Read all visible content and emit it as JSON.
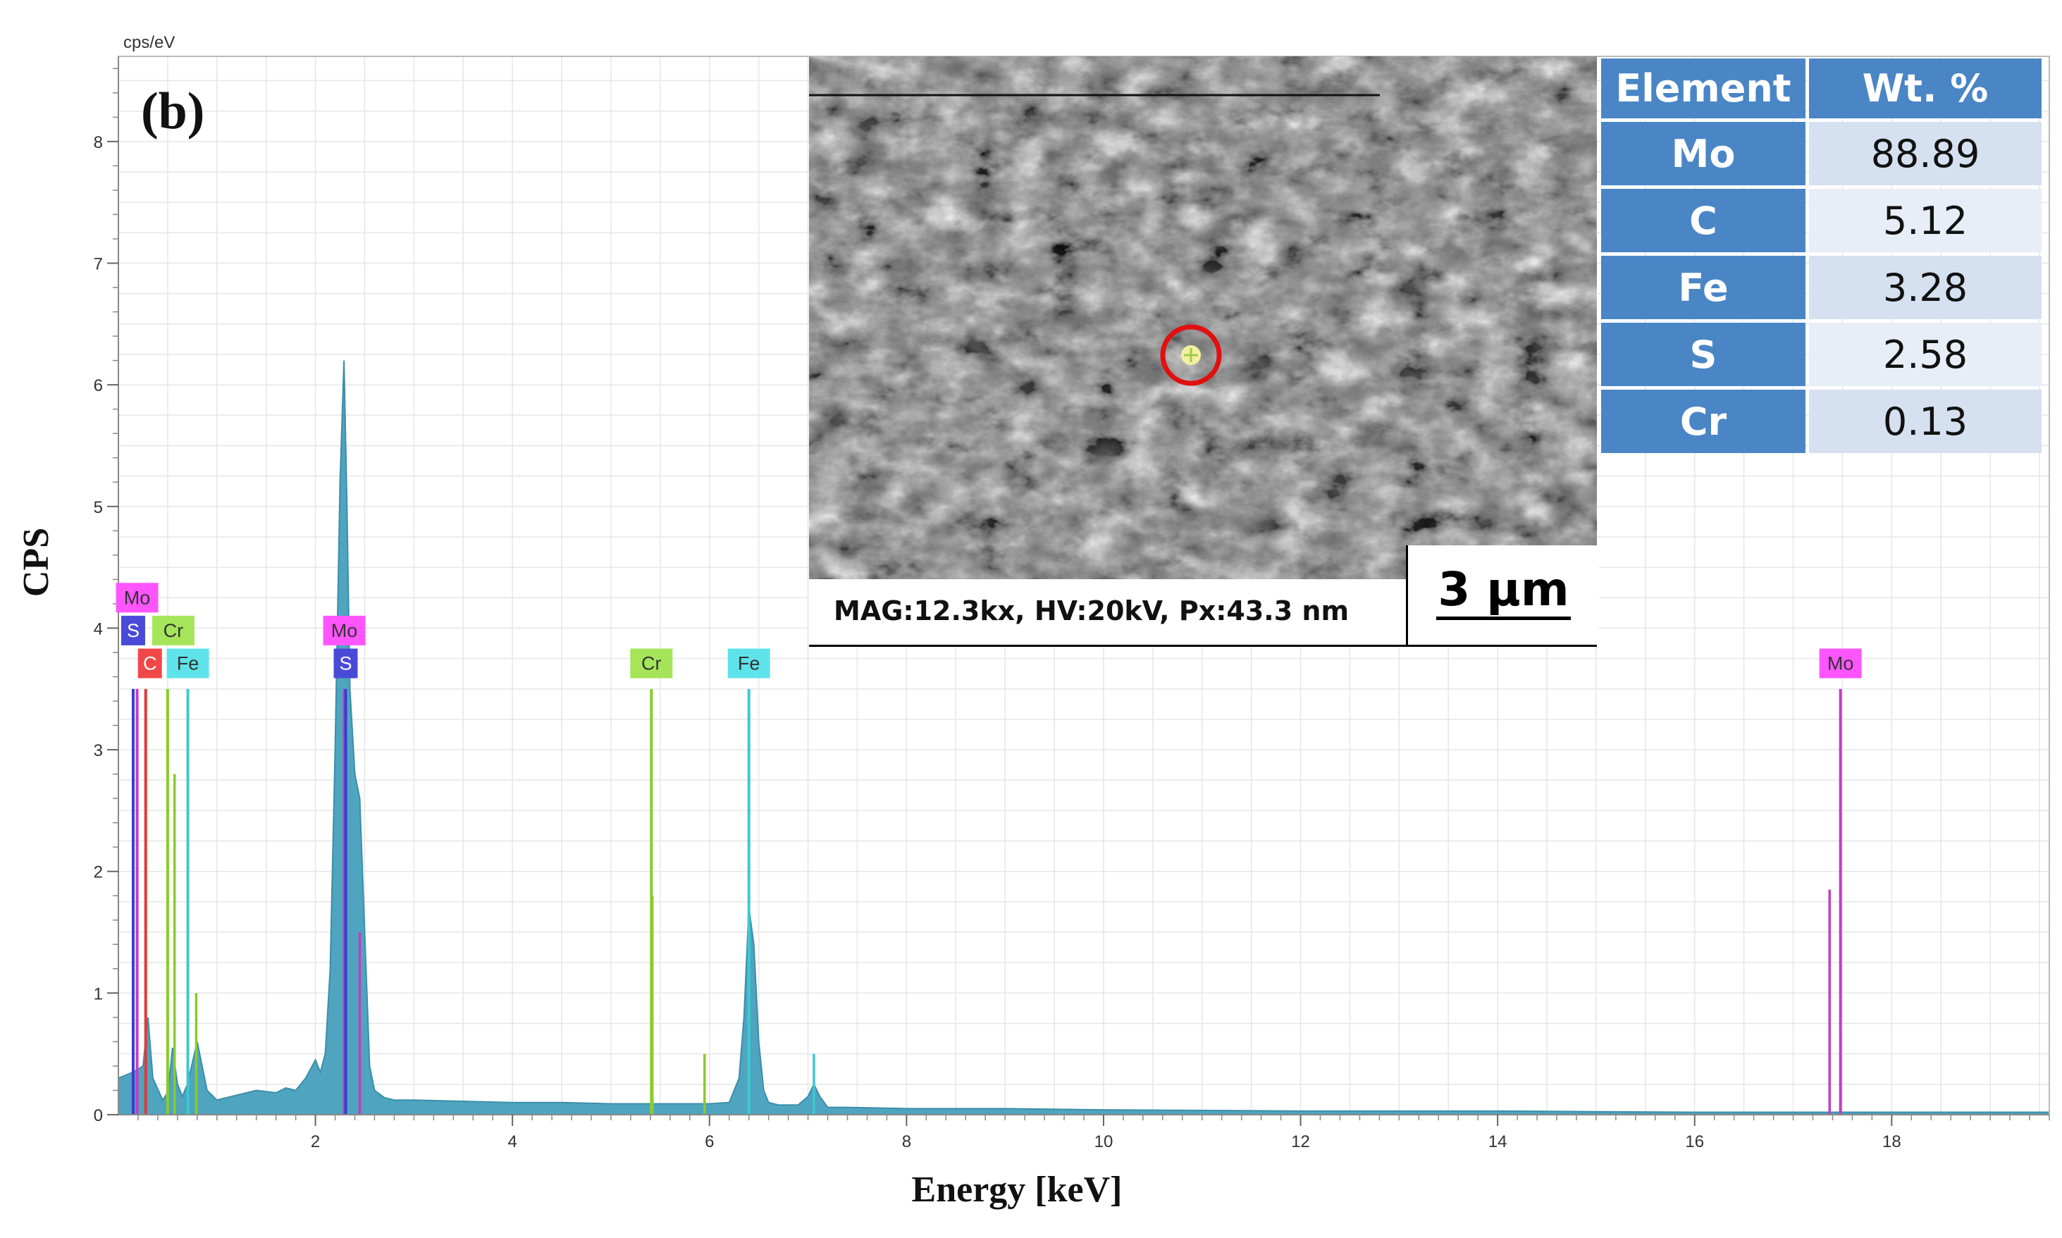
{
  "panel_label": "(b)",
  "chart_data": {
    "type": "line",
    "title": "",
    "xlabel": "Energy [keV]",
    "ylabel": "CPS",
    "y_unit_label": "cps/eV",
    "xlim": [
      0,
      19.6
    ],
    "ylim": [
      0,
      8.7
    ],
    "x_ticks": [
      2,
      4,
      6,
      8,
      10,
      12,
      14,
      16,
      18
    ],
    "y_ticks": [
      0,
      1,
      2,
      3,
      4,
      5,
      6,
      7,
      8
    ],
    "grid": true,
    "spectrum": {
      "x": [
        0.0,
        0.15,
        0.25,
        0.3,
        0.35,
        0.45,
        0.5,
        0.55,
        0.6,
        0.65,
        0.7,
        0.8,
        0.9,
        1.0,
        1.2,
        1.4,
        1.6,
        1.7,
        1.8,
        1.9,
        2.0,
        2.05,
        2.1,
        2.15,
        2.2,
        2.25,
        2.29,
        2.32,
        2.35,
        2.4,
        2.45,
        2.5,
        2.55,
        2.6,
        2.7,
        2.8,
        3.0,
        3.5,
        4.0,
        4.5,
        5.0,
        5.5,
        6.0,
        6.2,
        6.3,
        6.35,
        6.4,
        6.45,
        6.5,
        6.55,
        6.6,
        6.7,
        6.9,
        7.0,
        7.06,
        7.12,
        7.2,
        7.4,
        8.0,
        9.0,
        10.0,
        12.0,
        14.0,
        16.0,
        17.0,
        18.0,
        19.0,
        19.6
      ],
      "y": [
        0.3,
        0.35,
        0.4,
        0.8,
        0.3,
        0.12,
        0.18,
        0.55,
        0.25,
        0.15,
        0.25,
        0.6,
        0.2,
        0.12,
        0.16,
        0.2,
        0.18,
        0.22,
        0.2,
        0.3,
        0.45,
        0.35,
        0.5,
        1.2,
        3.0,
        5.2,
        6.2,
        5.0,
        3.5,
        2.8,
        2.6,
        1.5,
        0.4,
        0.2,
        0.14,
        0.12,
        0.12,
        0.11,
        0.1,
        0.1,
        0.09,
        0.09,
        0.09,
        0.1,
        0.3,
        0.8,
        1.7,
        1.4,
        0.6,
        0.2,
        0.1,
        0.08,
        0.08,
        0.15,
        0.25,
        0.15,
        0.06,
        0.06,
        0.05,
        0.05,
        0.04,
        0.03,
        0.03,
        0.02,
        0.02,
        0.02,
        0.02,
        0.02
      ]
    },
    "element_markers": [
      {
        "element": "Mo",
        "energy": 0.19,
        "height": 3.5,
        "color": "#c13ec1",
        "label_color": "#ff55ff",
        "row": 0
      },
      {
        "element": "S",
        "energy": 0.15,
        "height": 3.5,
        "color": "#3b3bcf",
        "label_color": "#4a4ad8",
        "row": 1
      },
      {
        "element": "C",
        "energy": 0.277,
        "height": 3.5,
        "color": "#e03a3a",
        "label_color": "#f04848",
        "row": 2
      },
      {
        "element": "Cr",
        "energy": 0.5,
        "height": 3.5,
        "color": "#8acb2a",
        "label_color": "#a6e55a",
        "row": 1
      },
      {
        "element": "Fe",
        "energy": 0.705,
        "height": 3.5,
        "color": "#3ec8d0",
        "label_color": "#5fe3ea",
        "row": 2
      },
      {
        "element": "Mo",
        "energy": 2.293,
        "height": 3.5,
        "color": "#c13ec1",
        "label_color": "#ff55ff",
        "row": 1
      },
      {
        "element": "S",
        "energy": 2.307,
        "height": 3.5,
        "color": "#3b3bcf",
        "label_color": "#4a4ad8",
        "row": 2
      },
      {
        "element": "Cr",
        "energy": 5.41,
        "height": 3.5,
        "color": "#8acb2a",
        "label_color": "#a6e55a",
        "row": 2
      },
      {
        "element": "Fe",
        "energy": 6.4,
        "height": 3.5,
        "color": "#3ec8d0",
        "label_color": "#5fe3ea",
        "row": 2
      },
      {
        "element": "Mo",
        "energy": 17.48,
        "height": 3.5,
        "color": "#c13ec1",
        "label_color": "#ff55ff",
        "row": 2
      }
    ],
    "minor_lines": [
      {
        "energy": 0.57,
        "height": 2.8,
        "color": "#8acb2a"
      },
      {
        "energy": 0.79,
        "height": 1.0,
        "color": "#8acb2a"
      },
      {
        "energy": 5.95,
        "height": 0.5,
        "color": "#8acb2a"
      },
      {
        "energy": 7.06,
        "height": 0.5,
        "color": "#3ec8d0"
      },
      {
        "energy": 17.37,
        "height": 1.85,
        "color": "#c13ec1"
      },
      {
        "energy": 2.45,
        "height": 1.5,
        "color": "#c13ec1"
      },
      {
        "energy": 5.42,
        "height": 1.8,
        "color": "#8acb2a"
      }
    ]
  },
  "inset": {
    "caption": "MAG:12.3kx, HV:20kV, Px:43.3 nm",
    "scale_bar": "3 µm"
  },
  "composition_table": {
    "headers": [
      "Element",
      "Wt. %"
    ],
    "rows": [
      {
        "element": "Mo",
        "wt": "88.89"
      },
      {
        "element": "C",
        "wt": "5.12"
      },
      {
        "element": "Fe",
        "wt": "3.28"
      },
      {
        "element": "S",
        "wt": "2.58"
      },
      {
        "element": "Cr",
        "wt": "0.13"
      }
    ]
  },
  "colors": {
    "spectrum_fill": "#4fa4bf",
    "spectrum_edge": "#3b8fa9",
    "grid": "#e6e6e6",
    "marker_circle": "#e01010",
    "table_header": "#4a86c6",
    "table_cell": "#d5e0f0"
  }
}
